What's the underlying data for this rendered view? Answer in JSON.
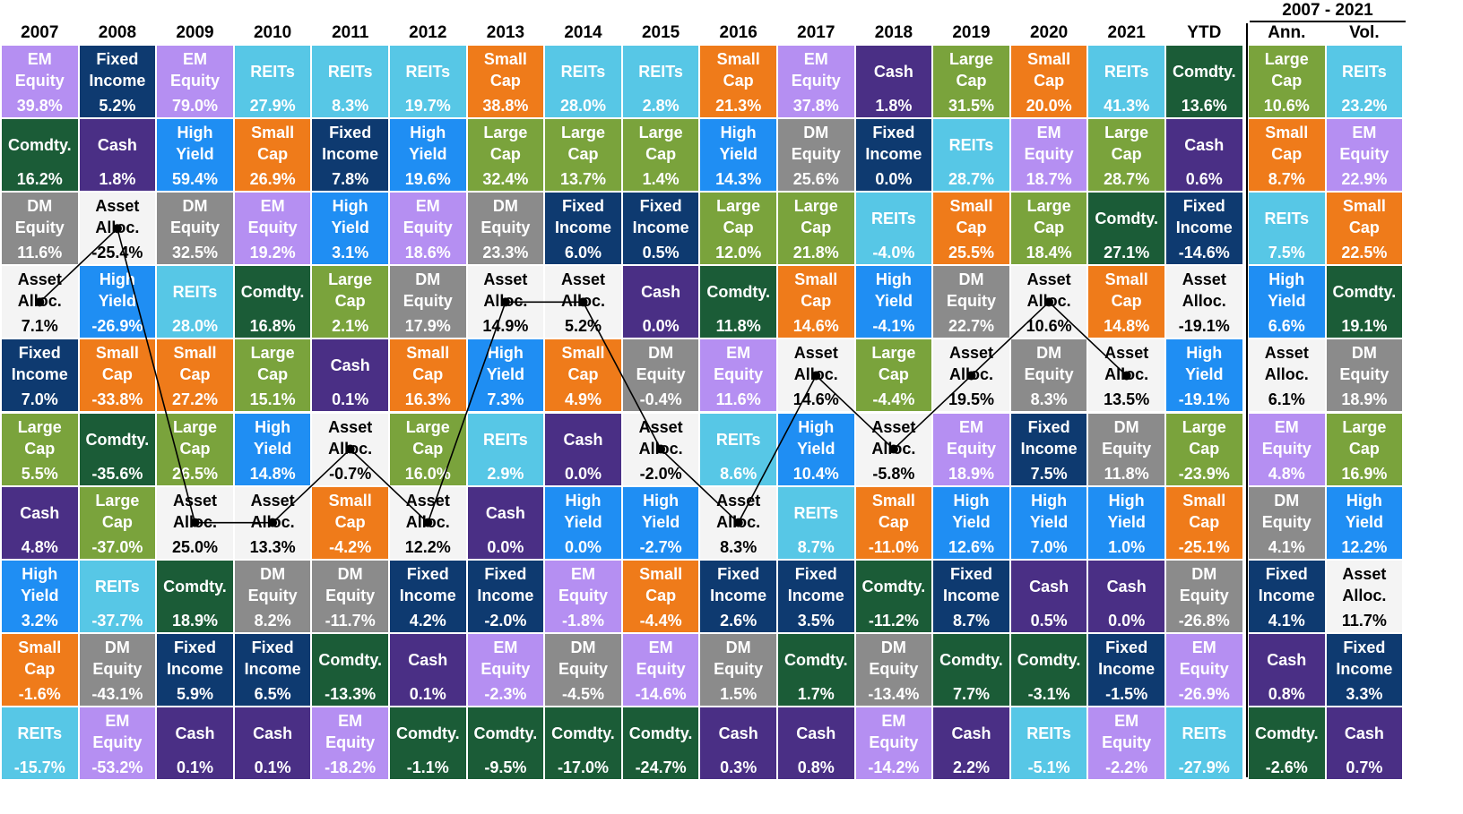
{
  "chart_data": {
    "type": "table",
    "header_group": "2007 - 2021",
    "columns": [
      "2007",
      "2008",
      "2009",
      "2010",
      "2011",
      "2012",
      "2013",
      "2014",
      "2015",
      "2016",
      "2017",
      "2018",
      "2019",
      "2020",
      "2021",
      "YTD",
      "Ann.",
      "Vol."
    ],
    "asset_classes": {
      "em": {
        "label": "EM\nEquity",
        "color": "#b58ff2"
      },
      "fixed": {
        "label": "Fixed\nIncome",
        "color": "#0e3a70"
      },
      "reits": {
        "label": "REITs",
        "color": "#57c7e6"
      },
      "small": {
        "label": "Small\nCap",
        "color": "#ef7b1a"
      },
      "cash": {
        "label": "Cash",
        "color": "#4a2f85"
      },
      "large": {
        "label": "Large\nCap",
        "color": "#7aa33c"
      },
      "comm": {
        "label": "Comdty.",
        "color": "#1b5c37"
      },
      "hy": {
        "label": "High\nYield",
        "color": "#1f8ef3"
      },
      "dm": {
        "label": "DM\nEquity",
        "color": "#8b8b8b"
      },
      "alloc": {
        "label": "Asset\nAlloc.",
        "color": "#f4f4f4"
      }
    },
    "ranks": [
      [
        [
          "em",
          "39.8%"
        ],
        [
          "fixed",
          "5.2%"
        ],
        [
          "em",
          "79.0%"
        ],
        [
          "reits",
          "27.9%"
        ],
        [
          "reits",
          "8.3%"
        ],
        [
          "reits",
          "19.7%"
        ],
        [
          "small",
          "38.8%"
        ],
        [
          "reits",
          "28.0%"
        ],
        [
          "reits",
          "2.8%"
        ],
        [
          "small",
          "21.3%"
        ],
        [
          "em",
          "37.8%"
        ],
        [
          "cash",
          "1.8%"
        ],
        [
          "large",
          "31.5%"
        ],
        [
          "small",
          "20.0%"
        ],
        [
          "reits",
          "41.3%"
        ],
        [
          "comm",
          "13.6%"
        ],
        [
          "large",
          "10.6%"
        ],
        [
          "reits",
          "23.2%"
        ]
      ],
      [
        [
          "comm",
          "16.2%"
        ],
        [
          "cash",
          "1.8%"
        ],
        [
          "hy",
          "59.4%"
        ],
        [
          "small",
          "26.9%"
        ],
        [
          "fixed",
          "7.8%"
        ],
        [
          "hy",
          "19.6%"
        ],
        [
          "large",
          "32.4%"
        ],
        [
          "large",
          "13.7%"
        ],
        [
          "large",
          "1.4%"
        ],
        [
          "hy",
          "14.3%"
        ],
        [
          "dm",
          "25.6%"
        ],
        [
          "fixed",
          "0.0%"
        ],
        [
          "reits",
          "28.7%"
        ],
        [
          "em",
          "18.7%"
        ],
        [
          "large",
          "28.7%"
        ],
        [
          "cash",
          "0.6%"
        ],
        [
          "small",
          "8.7%"
        ],
        [
          "em",
          "22.9%"
        ]
      ],
      [
        [
          "dm",
          "11.6%"
        ],
        [
          "alloc",
          "-25.4%"
        ],
        [
          "dm",
          "32.5%"
        ],
        [
          "em",
          "19.2%"
        ],
        [
          "hy",
          "3.1%"
        ],
        [
          "em",
          "18.6%"
        ],
        [
          "dm",
          "23.3%"
        ],
        [
          "fixed",
          "6.0%"
        ],
        [
          "fixed",
          "0.5%"
        ],
        [
          "large",
          "12.0%"
        ],
        [
          "large",
          "21.8%"
        ],
        [
          "reits",
          "-4.0%"
        ],
        [
          "small",
          "25.5%"
        ],
        [
          "large",
          "18.4%"
        ],
        [
          "comm",
          "27.1%"
        ],
        [
          "fixed",
          "-14.6%"
        ],
        [
          "reits",
          "7.5%"
        ],
        [
          "small",
          "22.5%"
        ]
      ],
      [
        [
          "alloc",
          "7.1%"
        ],
        [
          "hy",
          "-26.9%"
        ],
        [
          "reits",
          "28.0%"
        ],
        [
          "comm",
          "16.8%"
        ],
        [
          "large",
          "2.1%"
        ],
        [
          "dm",
          "17.9%"
        ],
        [
          "alloc",
          "14.9%"
        ],
        [
          "alloc",
          "5.2%"
        ],
        [
          "cash",
          "0.0%"
        ],
        [
          "comm",
          "11.8%"
        ],
        [
          "small",
          "14.6%"
        ],
        [
          "hy",
          "-4.1%"
        ],
        [
          "dm",
          "22.7%"
        ],
        [
          "alloc",
          "10.6%"
        ],
        [
          "small",
          "14.8%"
        ],
        [
          "alloc",
          "-19.1%"
        ],
        [
          "hy",
          "6.6%"
        ],
        [
          "comm",
          "19.1%"
        ]
      ],
      [
        [
          "fixed",
          "7.0%"
        ],
        [
          "small",
          "-33.8%"
        ],
        [
          "small",
          "27.2%"
        ],
        [
          "large",
          "15.1%"
        ],
        [
          "cash",
          "0.1%"
        ],
        [
          "small",
          "16.3%"
        ],
        [
          "hy",
          "7.3%"
        ],
        [
          "small",
          "4.9%"
        ],
        [
          "dm",
          "-0.4%"
        ],
        [
          "em",
          "11.6%"
        ],
        [
          "alloc",
          "14.6%"
        ],
        [
          "large",
          "-4.4%"
        ],
        [
          "alloc",
          "19.5%"
        ],
        [
          "dm",
          "8.3%"
        ],
        [
          "alloc",
          "13.5%"
        ],
        [
          "hy",
          "-19.1%"
        ],
        [
          "alloc",
          "6.1%"
        ],
        [
          "dm",
          "18.9%"
        ]
      ],
      [
        [
          "large",
          "5.5%"
        ],
        [
          "comm",
          "-35.6%"
        ],
        [
          "large",
          "26.5%"
        ],
        [
          "hy",
          "14.8%"
        ],
        [
          "alloc",
          "-0.7%"
        ],
        [
          "large",
          "16.0%"
        ],
        [
          "reits",
          "2.9%"
        ],
        [
          "cash",
          "0.0%"
        ],
        [
          "alloc",
          "-2.0%"
        ],
        [
          "reits",
          "8.6%"
        ],
        [
          "hy",
          "10.4%"
        ],
        [
          "alloc",
          "-5.8%"
        ],
        [
          "em",
          "18.9%"
        ],
        [
          "fixed",
          "7.5%"
        ],
        [
          "dm",
          "11.8%"
        ],
        [
          "large",
          "-23.9%"
        ],
        [
          "em",
          "4.8%"
        ],
        [
          "large",
          "16.9%"
        ]
      ],
      [
        [
          "cash",
          "4.8%"
        ],
        [
          "large",
          "-37.0%"
        ],
        [
          "alloc",
          "25.0%"
        ],
        [
          "alloc",
          "13.3%"
        ],
        [
          "small",
          "-4.2%"
        ],
        [
          "alloc",
          "12.2%"
        ],
        [
          "cash",
          "0.0%"
        ],
        [
          "hy",
          "0.0%"
        ],
        [
          "hy",
          "-2.7%"
        ],
        [
          "alloc",
          "8.3%"
        ],
        [
          "reits",
          "8.7%"
        ],
        [
          "small",
          "-11.0%"
        ],
        [
          "hy",
          "12.6%"
        ],
        [
          "hy",
          "7.0%"
        ],
        [
          "hy",
          "1.0%"
        ],
        [
          "small",
          "-25.1%"
        ],
        [
          "dm",
          "4.1%"
        ],
        [
          "hy",
          "12.2%"
        ]
      ],
      [
        [
          "hy",
          "3.2%"
        ],
        [
          "reits",
          "-37.7%"
        ],
        [
          "comm",
          "18.9%"
        ],
        [
          "dm",
          "8.2%"
        ],
        [
          "dm",
          "-11.7%"
        ],
        [
          "fixed",
          "4.2%"
        ],
        [
          "fixed",
          "-2.0%"
        ],
        [
          "em",
          "-1.8%"
        ],
        [
          "small",
          "-4.4%"
        ],
        [
          "fixed",
          "2.6%"
        ],
        [
          "fixed",
          "3.5%"
        ],
        [
          "comm",
          "-11.2%"
        ],
        [
          "fixed",
          "8.7%"
        ],
        [
          "cash",
          "0.5%"
        ],
        [
          "cash",
          "0.0%"
        ],
        [
          "dm",
          "-26.8%"
        ],
        [
          "fixed",
          "4.1%"
        ],
        [
          "alloc",
          "11.7%"
        ]
      ],
      [
        [
          "small",
          "-1.6%"
        ],
        [
          "dm",
          "-43.1%"
        ],
        [
          "fixed",
          "5.9%"
        ],
        [
          "fixed",
          "6.5%"
        ],
        [
          "comm",
          "-13.3%"
        ],
        [
          "cash",
          "0.1%"
        ],
        [
          "em",
          "-2.3%"
        ],
        [
          "dm",
          "-4.5%"
        ],
        [
          "em",
          "-14.6%"
        ],
        [
          "dm",
          "1.5%"
        ],
        [
          "comm",
          "1.7%"
        ],
        [
          "dm",
          "-13.4%"
        ],
        [
          "comm",
          "7.7%"
        ],
        [
          "comm",
          "-3.1%"
        ],
        [
          "fixed",
          "-1.5%"
        ],
        [
          "em",
          "-26.9%"
        ],
        [
          "cash",
          "0.8%"
        ],
        [
          "fixed",
          "3.3%"
        ]
      ],
      [
        [
          "reits",
          "-15.7%"
        ],
        [
          "em",
          "-53.2%"
        ],
        [
          "cash",
          "0.1%"
        ],
        [
          "cash",
          "0.1%"
        ],
        [
          "em",
          "-18.2%"
        ],
        [
          "comm",
          "-1.1%"
        ],
        [
          "comm",
          "-9.5%"
        ],
        [
          "comm",
          "-17.0%"
        ],
        [
          "comm",
          "-24.7%"
        ],
        [
          "cash",
          "0.3%"
        ],
        [
          "cash",
          "0.8%"
        ],
        [
          "em",
          "-14.2%"
        ],
        [
          "cash",
          "2.2%"
        ],
        [
          "reits",
          "-5.1%"
        ],
        [
          "em",
          "-2.2%"
        ],
        [
          "reits",
          "-27.9%"
        ],
        [
          "comm",
          "-2.6%"
        ],
        [
          "cash",
          "0.7%"
        ]
      ]
    ],
    "asset_alloc_line": {
      "columns": 15,
      "series_key": "alloc"
    }
  }
}
